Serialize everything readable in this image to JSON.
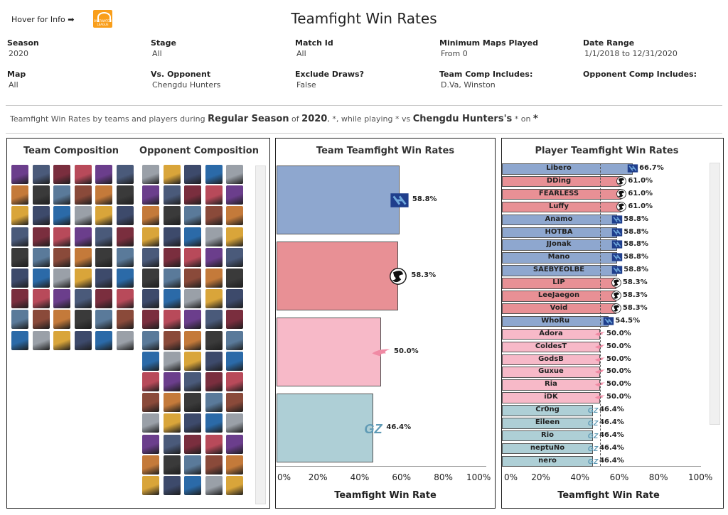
{
  "header": {
    "hover_text": "Hover for Info ➡",
    "title": "Teamfight Win Rates",
    "logo_caption": "OVERWATCH LEAGUE"
  },
  "filters": [
    {
      "label": "Season",
      "value": "2020"
    },
    {
      "label": "Stage",
      "value": "All"
    },
    {
      "label": "Match Id",
      "value": "All"
    },
    {
      "label": "Minimum Maps Played",
      "value": "From 0"
    },
    {
      "label": "Date Range",
      "value": "1/1/2018 to 12/31/2020"
    },
    {
      "label": "Map",
      "value": "All"
    },
    {
      "label": "Vs. Opponent",
      "value": "Chengdu Hunters"
    },
    {
      "label": "Exclude Draws?",
      "value": "False"
    },
    {
      "label": "Team Comp Includes:",
      "value": "D.Va, Winston"
    },
    {
      "label": "Opponent Comp Includes:",
      "value": ""
    }
  ],
  "description": {
    "p1": "Teamfight Win Rates by teams and players during ",
    "b1": "Regular Season",
    "p2": " of ",
    "b2": "2020",
    "p3": ", *, while playing  * vs ",
    "b3": "Chengdu Hunters's",
    "p4": " * on ",
    "b4": "*"
  },
  "comp_panel": {
    "team_title": "Team Composition",
    "opp_title": "Opponent Composition"
  },
  "colors": {
    "blue_team": "#8ea7cf",
    "red_team": "#e89095",
    "pink_team": "#f7b9c8",
    "teal_team": "#aecfd6",
    "navy_icon": "#1f3e8c",
    "black_icon": "#111111",
    "pink_icon": "#f08aa4",
    "teal_icon": "#5f9ab5"
  },
  "chart_data": [
    {
      "type": "bar",
      "title": "Team Teamfight Win Rates",
      "xlabel": "Teamfight Win Rate",
      "ylabel": "",
      "xlim": [
        0,
        100
      ],
      "x_ticks": [
        "0%",
        "20%",
        "40%",
        "60%",
        "80%",
        "100%"
      ],
      "bars": [
        {
          "value": 58.8,
          "label": "58.8%",
          "color": "#8ea7cf",
          "icon": "navy-x-team-icon"
        },
        {
          "value": 58.3,
          "label": "58.3%",
          "color": "#e89095",
          "icon": "dragon-team-icon"
        },
        {
          "value": 50.0,
          "label": "50.0%",
          "color": "#f7b9c8",
          "icon": "pink-wing-team-icon"
        },
        {
          "value": 46.4,
          "label": "46.4%",
          "color": "#aecfd6",
          "icon": "gz-team-icon"
        }
      ]
    },
    {
      "type": "bar",
      "title": "Player Teamfight Win Rates",
      "xlabel": "Teamfight Win Rate",
      "ylabel": "",
      "xlim": [
        0,
        100
      ],
      "x_ticks": [
        "0%",
        "20%",
        "40%",
        "60%",
        "80%",
        "100%"
      ],
      "reference_line": 50,
      "players": [
        {
          "name": "Libero",
          "value": 66.7,
          "label": "66.7%",
          "team": "blue"
        },
        {
          "name": "DDing",
          "value": 61.0,
          "label": "61.0%",
          "team": "red"
        },
        {
          "name": "FEARLESS",
          "value": 61.0,
          "label": "61.0%",
          "team": "red"
        },
        {
          "name": "Luffy",
          "value": 61.0,
          "label": "61.0%",
          "team": "red"
        },
        {
          "name": "Anamo",
          "value": 58.8,
          "label": "58.8%",
          "team": "blue"
        },
        {
          "name": "HOTBA",
          "value": 58.8,
          "label": "58.8%",
          "team": "blue"
        },
        {
          "name": "JJonak",
          "value": 58.8,
          "label": "58.8%",
          "team": "blue"
        },
        {
          "name": "Mano",
          "value": 58.8,
          "label": "58.8%",
          "team": "blue"
        },
        {
          "name": "SAEBYEOLBE",
          "value": 58.8,
          "label": "58.8%",
          "team": "blue"
        },
        {
          "name": "LIP",
          "value": 58.3,
          "label": "58.3%",
          "team": "red"
        },
        {
          "name": "LeeJaegon",
          "value": 58.3,
          "label": "58.3%",
          "team": "red"
        },
        {
          "name": "Void",
          "value": 58.3,
          "label": "58.3%",
          "team": "red"
        },
        {
          "name": "WhoRu",
          "value": 54.5,
          "label": "54.5%",
          "team": "blue"
        },
        {
          "name": "Adora",
          "value": 50.0,
          "label": "50.0%",
          "team": "pink"
        },
        {
          "name": "ColdesT",
          "value": 50.0,
          "label": "50.0%",
          "team": "pink"
        },
        {
          "name": "GodsB",
          "value": 50.0,
          "label": "50.0%",
          "team": "pink"
        },
        {
          "name": "Guxue",
          "value": 50.0,
          "label": "50.0%",
          "team": "pink"
        },
        {
          "name": "Ria",
          "value": 50.0,
          "label": "50.0%",
          "team": "pink"
        },
        {
          "name": "iDK",
          "value": 50.0,
          "label": "50.0%",
          "team": "pink"
        },
        {
          "name": "Cr0ng",
          "value": 46.4,
          "label": "46.4%",
          "team": "teal"
        },
        {
          "name": "Eileen",
          "value": 46.4,
          "label": "46.4%",
          "team": "teal"
        },
        {
          "name": "Rio",
          "value": 46.4,
          "label": "46.4%",
          "team": "teal"
        },
        {
          "name": "neptuNo",
          "value": 46.4,
          "label": "46.4%",
          "team": "teal"
        },
        {
          "name": "nero",
          "value": 46.4,
          "label": "46.4%",
          "team": "teal"
        }
      ]
    }
  ]
}
